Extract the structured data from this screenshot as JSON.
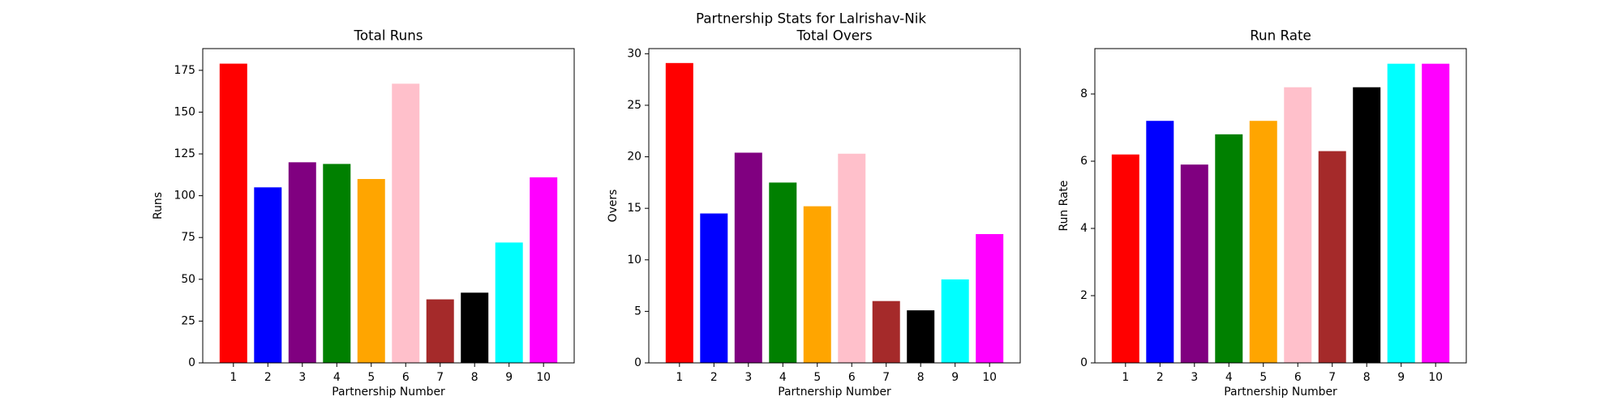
{
  "figure": {
    "suptitle": "Partnership Stats for Lalrishav-Nik"
  },
  "chart_data": [
    {
      "type": "bar",
      "title": "Total Runs",
      "xlabel": "Partnership Number",
      "ylabel": "Runs",
      "categories": [
        "1",
        "2",
        "3",
        "4",
        "5",
        "6",
        "7",
        "8",
        "9",
        "10"
      ],
      "values": [
        179,
        105,
        120,
        119,
        110,
        167,
        38,
        42,
        72,
        111
      ],
      "ylim": [
        0,
        188
      ],
      "yticks": [
        0,
        25,
        50,
        75,
        100,
        125,
        150,
        175
      ],
      "grid": false,
      "colors": [
        "#ff0000",
        "#0000ff",
        "#800080",
        "#008000",
        "#ffa500",
        "#ffc0cb",
        "#a52a2a",
        "#000000",
        "#00ffff",
        "#ff00ff"
      ]
    },
    {
      "type": "bar",
      "title": "Total Overs",
      "xlabel": "Partnership Number",
      "ylabel": "Overs",
      "categories": [
        "1",
        "2",
        "3",
        "4",
        "5",
        "6",
        "7",
        "8",
        "9",
        "10"
      ],
      "values": [
        29.1,
        14.5,
        20.4,
        17.5,
        15.2,
        20.3,
        6.0,
        5.1,
        8.1,
        12.5
      ],
      "ylim": [
        0,
        30.5
      ],
      "yticks": [
        0,
        5,
        10,
        15,
        20,
        25,
        30
      ],
      "grid": false,
      "colors": [
        "#ff0000",
        "#0000ff",
        "#800080",
        "#008000",
        "#ffa500",
        "#ffc0cb",
        "#a52a2a",
        "#000000",
        "#00ffff",
        "#ff00ff"
      ]
    },
    {
      "type": "bar",
      "title": "Run Rate",
      "xlabel": "Partnership Number",
      "ylabel": "Run Rate",
      "categories": [
        "1",
        "2",
        "3",
        "4",
        "5",
        "6",
        "7",
        "8",
        "9",
        "10"
      ],
      "values": [
        6.2,
        7.2,
        5.9,
        6.8,
        7.2,
        8.2,
        6.3,
        8.2,
        8.9,
        8.9
      ],
      "ylim": [
        0,
        9.35
      ],
      "yticks": [
        0,
        2,
        4,
        6,
        8
      ],
      "grid": false,
      "colors": [
        "#ff0000",
        "#0000ff",
        "#800080",
        "#008000",
        "#ffa500",
        "#ffc0cb",
        "#a52a2a",
        "#000000",
        "#00ffff",
        "#ff00ff"
      ]
    }
  ]
}
